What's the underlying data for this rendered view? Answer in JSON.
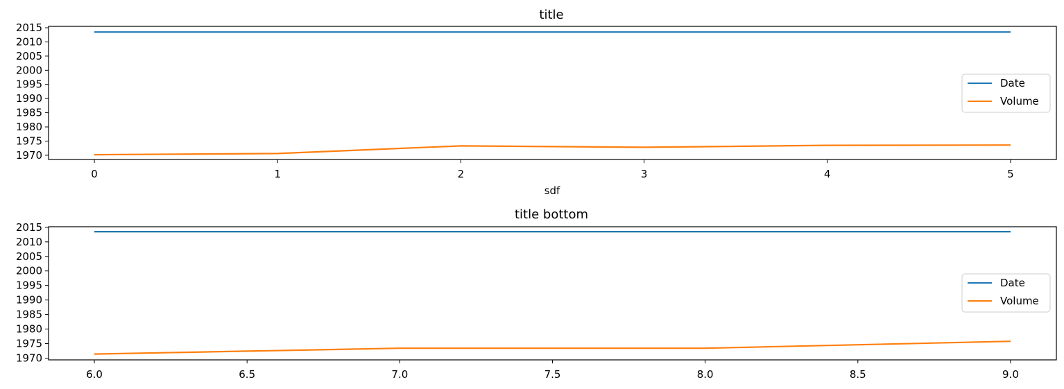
{
  "colors": {
    "Date": "#1f77b4",
    "Volume": "#ff7f0e",
    "axes": "#000000",
    "legend_border": "#cccccc"
  },
  "chart_data": [
    {
      "type": "line",
      "title": "title",
      "xlabel": "sdf",
      "ylabel": "",
      "x": [
        0,
        1,
        2,
        3,
        4,
        5
      ],
      "xticks": [
        "0",
        "1",
        "2",
        "3",
        "4",
        "5"
      ],
      "xlim": [
        -0.25,
        5.25
      ],
      "ylim": [
        1968.5,
        2015.5
      ],
      "yticks": [
        "1970",
        "1975",
        "1980",
        "1985",
        "1990",
        "1995",
        "2000",
        "2005",
        "2010",
        "2015"
      ],
      "grid": false,
      "legend_position": "center-right",
      "series": [
        {
          "name": "Date",
          "values": [
            2013.5,
            2013.5,
            2013.5,
            2013.5,
            2013.5,
            2013.5
          ]
        },
        {
          "name": "Volume",
          "values": [
            1970.2,
            1970.6,
            1973.3,
            1972.8,
            1973.5,
            1973.6
          ]
        }
      ]
    },
    {
      "type": "line",
      "title": "title bottom",
      "xlabel": "",
      "ylabel": "",
      "x": [
        6,
        7,
        8,
        9
      ],
      "xticks": [
        "6.0",
        "6.5",
        "7.0",
        "7.5",
        "8.0",
        "8.5",
        "9.0"
      ],
      "xlim": [
        5.85,
        9.15
      ],
      "ylim": [
        1969.4,
        2015.2
      ],
      "yticks": [
        "1970",
        "1975",
        "1980",
        "1985",
        "1990",
        "1995",
        "2000",
        "2005",
        "2010",
        "2015"
      ],
      "grid": false,
      "legend_position": "center-right",
      "series": [
        {
          "name": "Date",
          "values": [
            2013.5,
            2013.5,
            2013.5,
            2013.5
          ]
        },
        {
          "name": "Volume",
          "values": [
            1971.4,
            1973.4,
            1973.4,
            1975.8
          ]
        }
      ]
    }
  ]
}
